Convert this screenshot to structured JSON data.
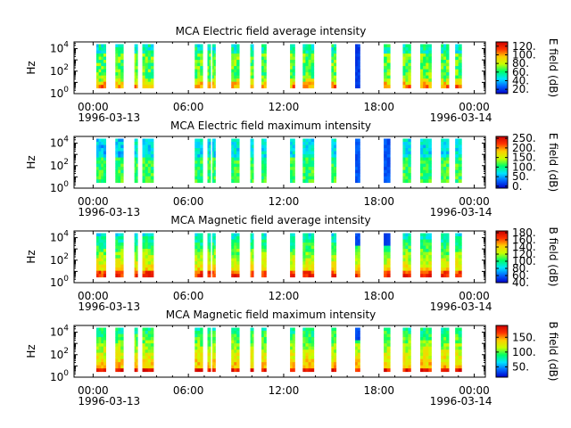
{
  "chart_data": [
    {
      "type": "heatmap",
      "title": "MCA  Electric field average intensity",
      "ylabel": "Hz",
      "xlabel": "",
      "colorbar_label": "E field (dB)",
      "colorbar_ticks": [
        "20.",
        "40.",
        "60.",
        "80.",
        "100.",
        "120."
      ],
      "colorbar_tick_values": [
        20,
        40,
        60,
        80,
        100,
        120
      ],
      "colorbar_range": [
        10,
        130
      ],
      "field": "E",
      "stat": "avg"
    },
    {
      "type": "heatmap",
      "title": "MCA  Electric field maximum intensity",
      "ylabel": "Hz",
      "xlabel": "",
      "colorbar_label": "E field (dB)",
      "colorbar_ticks": [
        "0.",
        "50.",
        "100.",
        "150.",
        "200.",
        "250."
      ],
      "colorbar_tick_values": [
        0,
        50,
        100,
        150,
        200,
        250
      ],
      "colorbar_range": [
        -10,
        260
      ],
      "field": "E",
      "stat": "max"
    },
    {
      "type": "heatmap",
      "title": "MCA  Magnetic field average intensity",
      "ylabel": "Hz",
      "xlabel": "",
      "colorbar_label": "B field (dB)",
      "colorbar_ticks": [
        "40.",
        "60.",
        "80.",
        "100.",
        "120.",
        "140.",
        "160.",
        "180."
      ],
      "colorbar_tick_values": [
        40,
        60,
        80,
        100,
        120,
        140,
        160,
        180
      ],
      "colorbar_range": [
        40,
        185
      ],
      "field": "B",
      "stat": "avg"
    },
    {
      "type": "heatmap",
      "title": "MCA  Magnetic field maximum intensity",
      "ylabel": "Hz",
      "xlabel": "",
      "colorbar_label": "B field (dB)",
      "colorbar_ticks": [
        "50.",
        "100.",
        "150."
      ],
      "colorbar_tick_values": [
        50,
        100,
        150
      ],
      "colorbar_range": [
        15,
        190
      ],
      "field": "B",
      "stat": "max"
    }
  ],
  "shared_axes": {
    "x_range_hours": [
      -1.2,
      24.7
    ],
    "x_ticks": [
      {
        "hour": 0,
        "label": "00:00"
      },
      {
        "hour": 6,
        "label": "06:00"
      },
      {
        "hour": 12,
        "label": "12:00"
      },
      {
        "hour": 18,
        "label": "18:00"
      },
      {
        "hour": 24,
        "label": "00:00"
      }
    ],
    "date_start": "1996-03-13",
    "date_end": "1996-03-14",
    "y_scale": "log",
    "y_range_log10": [
      0,
      4.6
    ],
    "y_ticks_log10": [
      0,
      2,
      4
    ],
    "y_tick_base": "10",
    "y_tick_exponents": [
      "0",
      "2",
      "4"
    ],
    "data_band_log10": [
      0.5,
      4.4
    ]
  },
  "data_segments_hours": [
    [
      0.2,
      0.8
    ],
    [
      1.4,
      1.9
    ],
    [
      2.6,
      2.8
    ],
    [
      3.1,
      3.8
    ],
    [
      6.4,
      6.9
    ],
    [
      7.2,
      7.4
    ],
    [
      7.5,
      7.7
    ],
    [
      8.7,
      9.2
    ],
    [
      9.9,
      10.1
    ],
    [
      10.6,
      10.9
    ],
    [
      12.4,
      12.7
    ],
    [
      13.2,
      13.9
    ],
    [
      15.0,
      15.3
    ],
    [
      16.5,
      16.8
    ],
    [
      18.3,
      18.7
    ],
    [
      19.5,
      20.0
    ],
    [
      20.6,
      21.3
    ],
    [
      21.9,
      22.4
    ],
    [
      22.8,
      23.2
    ]
  ],
  "colormap": [
    "#0000c8",
    "#0066ff",
    "#00e5ff",
    "#00ff66",
    "#c8ff00",
    "#ffcc00",
    "#ff3300",
    "#cc0000"
  ]
}
